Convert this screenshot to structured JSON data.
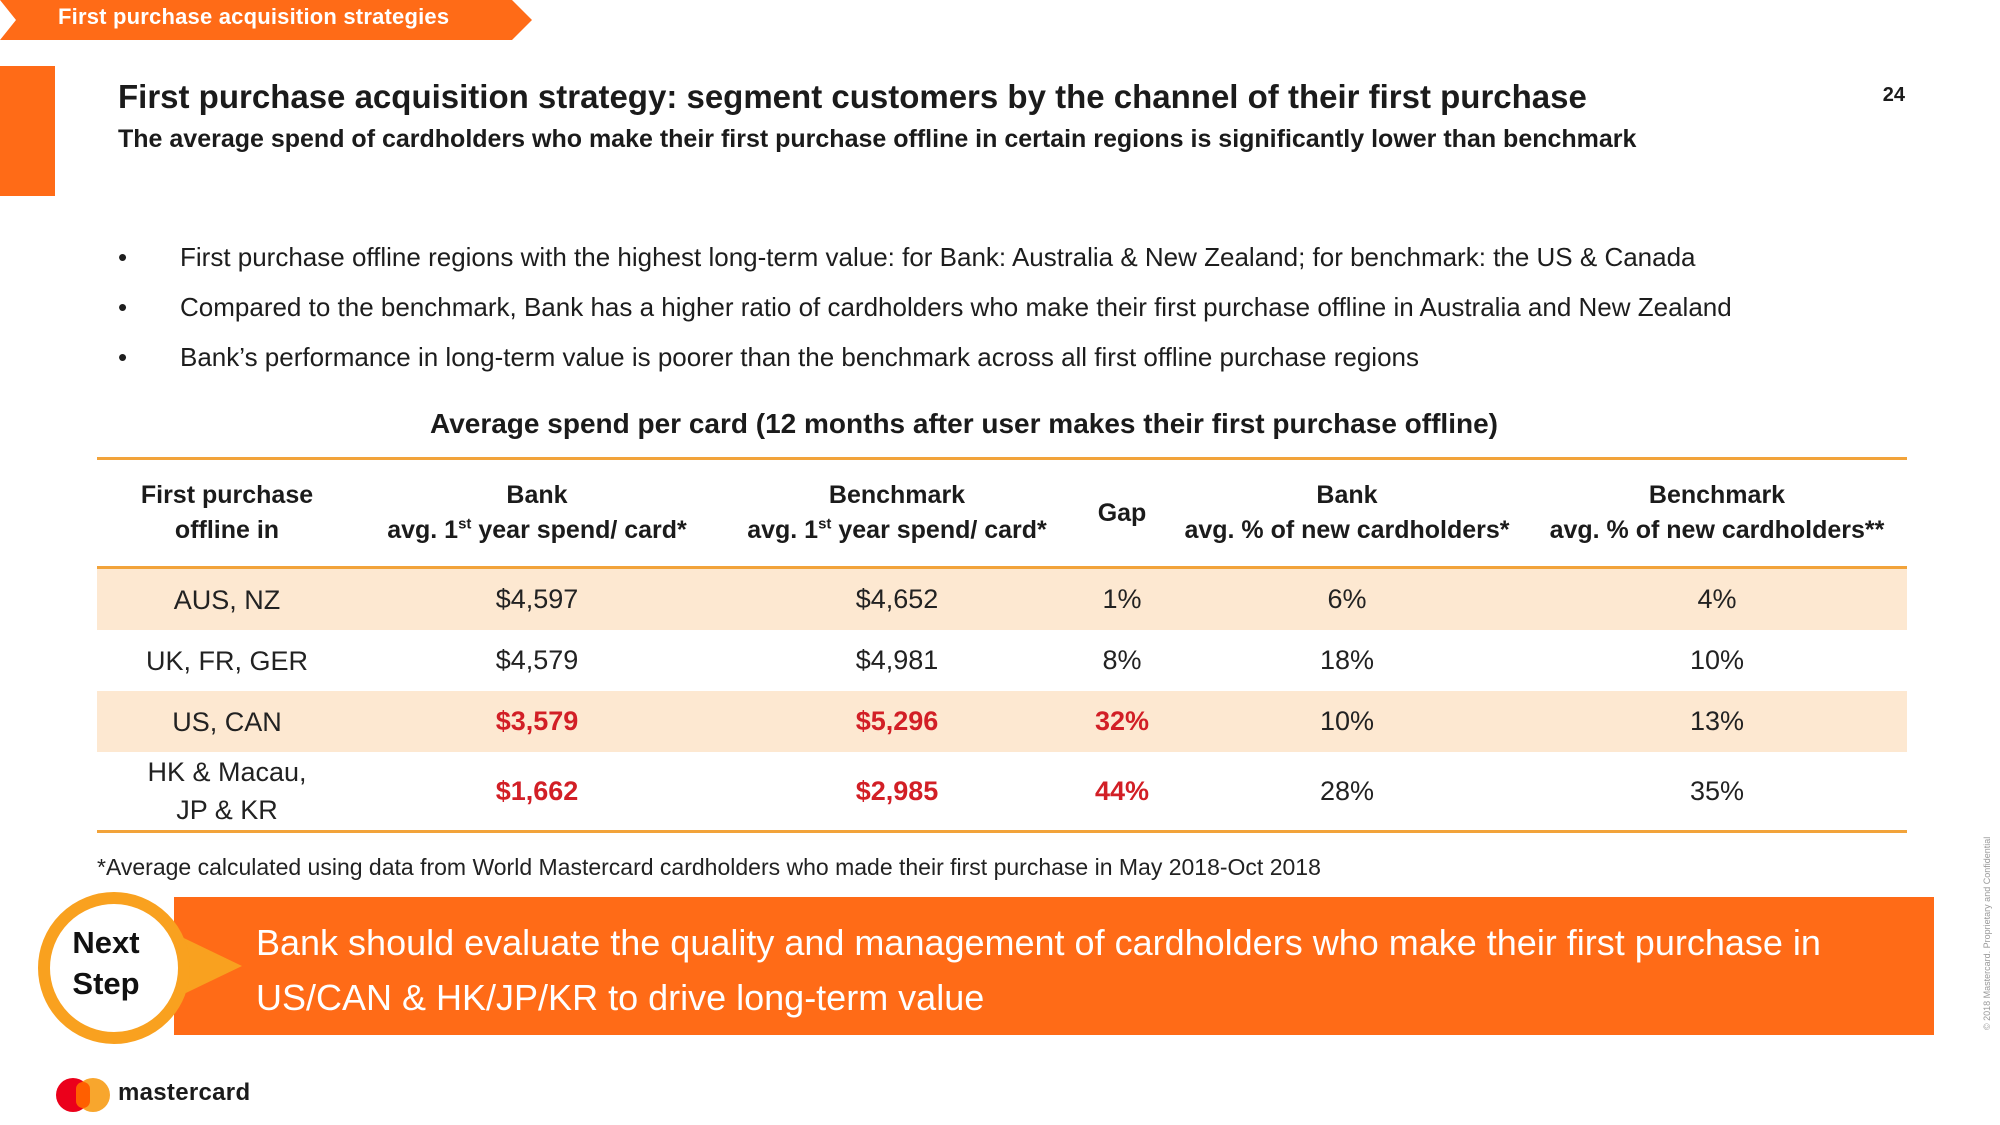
{
  "section_tag": "First purchase acquisition strategies",
  "page_number": "24",
  "title": "First purchase acquisition strategy: segment customers by the channel of their first purchase",
  "subtitle": "The average spend of cardholders who make their first purchase offline in certain regions is significantly lower than benchmark",
  "bullet_symbol": "•",
  "bullets": [
    "First purchase offline regions with the highest long-term value: for Bank: Australia & New Zealand; for benchmark: the US & Canada",
    "Compared to the benchmark, Bank has a higher ratio of cardholders who make their first purchase offline in Australia and New Zealand",
    "Bank’s performance in long-term value is poorer than the benchmark across all first offline purchase regions"
  ],
  "table": {
    "title": "Average spend per card (12 months after user makes their first purchase offline)",
    "headers": {
      "col1_line1": "First purchase",
      "col1_line2": "offline in",
      "col2_line1": "Bank",
      "col2_line2_pre": "avg.  1",
      "col2_line2_sup": "st",
      "col2_line2_post": " year spend/ card*",
      "col3_line1": "Benchmark",
      "col3_line2_pre": "avg. 1",
      "col3_line2_sup": "st",
      "col3_line2_post": " year spend/ card*",
      "col4": "Gap",
      "col5_line1": "Bank",
      "col5_line2": "avg. % of new cardholders*",
      "col6_line1": "Benchmark",
      "col6_line2": "avg. % of new cardholders**"
    },
    "rows": [
      {
        "region_line1": "AUS, NZ",
        "region_line2": "",
        "bank_spend": "$4,597",
        "bench_spend": "$4,652",
        "gap": "1%",
        "bank_pct": "6%",
        "bench_pct": "4%",
        "highlight": false
      },
      {
        "region_line1": "UK, FR, GER",
        "region_line2": "",
        "bank_spend": "$4,579",
        "bench_spend": "$4,981",
        "gap": "8%",
        "bank_pct": "18%",
        "bench_pct": "10%",
        "highlight": false
      },
      {
        "region_line1": "US, CAN",
        "region_line2": "",
        "bank_spend": "$3,579",
        "bench_spend": "$5,296",
        "gap": "32%",
        "bank_pct": "10%",
        "bench_pct": "13%",
        "highlight": true
      },
      {
        "region_line1": "HK & Macau,",
        "region_line2": "JP & KR",
        "bank_spend": "$1,662",
        "bench_spend": "$2,985",
        "gap": "44%",
        "bank_pct": "28%",
        "bench_pct": "35%",
        "highlight": true
      }
    ]
  },
  "footnote": "*Average calculated using data from World Mastercard cardholders who made their first purchase in May 2018-Oct 2018",
  "next_step": {
    "label_line1": "Next",
    "label_line2": "Step",
    "text": "Bank should evaluate the quality and management of cardholders who make their first purchase in US/CAN & HK/JP/KR to drive long-term value"
  },
  "brand": "mastercard",
  "copyright": "© 2018 Mastercard. Proprietary and Confidential",
  "colors": {
    "accent_orange": "#ff6b17",
    "circle_orange": "#f9a11f",
    "table_rule": "#f2a33a",
    "row_shade": "#fde8d1",
    "alert_red": "#d21f26"
  }
}
